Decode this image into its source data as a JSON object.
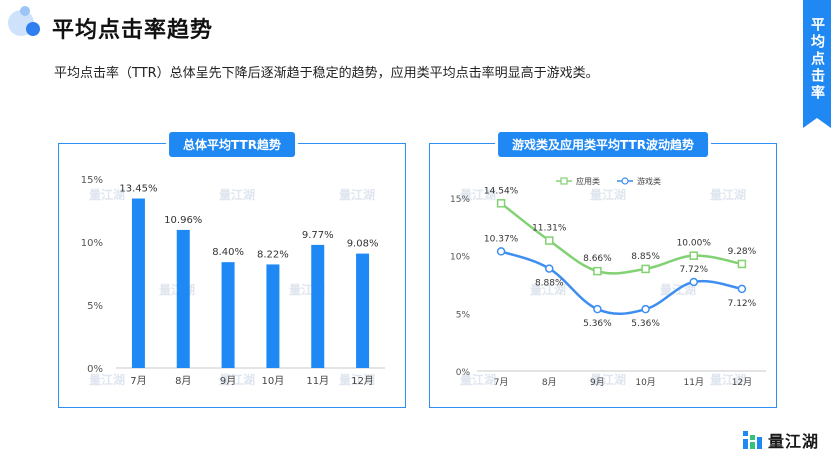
{
  "header": {
    "title": "平均点击率趋势",
    "side_tab": "平均点击率"
  },
  "summary": "平均点击率（TTR）总体呈先下降后逐渐趋于稳定的趋势，应用类平均点击率明显高于游戏类。",
  "brand": {
    "name": "量江湖",
    "watermark": "量江湖"
  },
  "colors": {
    "accent": "#1f88f2",
    "bar": "#1e88f5",
    "app_line": "#82d173",
    "game_line": "#3d8ef0"
  },
  "chart_data": [
    {
      "type": "bar",
      "title": "总体平均TTR趋势",
      "categories": [
        "7月",
        "8月",
        "9月",
        "10月",
        "11月",
        "12月"
      ],
      "values": [
        13.45,
        10.96,
        8.4,
        8.22,
        9.77,
        9.08
      ],
      "value_labels": [
        "13.45%",
        "10.96%",
        "8.40%",
        "8.22%",
        "9.77%",
        "9.08%"
      ],
      "yticks": [
        "0%",
        "5%",
        "10%",
        "15%"
      ],
      "ylim": [
        0,
        15
      ],
      "grid": false
    },
    {
      "type": "line",
      "title": "游戏类及应用类平均TTR波动趋势",
      "categories": [
        "7月",
        "8月",
        "9月",
        "10月",
        "11月",
        "12月"
      ],
      "yticks": [
        "0%",
        "5%",
        "10%",
        "15%"
      ],
      "ylim": [
        0,
        15
      ],
      "legend_position": "top-center",
      "series": [
        {
          "name": "应用类",
          "values": [
            14.54,
            11.31,
            8.66,
            8.85,
            10.0,
            9.28
          ],
          "labels": [
            "14.54%",
            "11.31%",
            "8.66%",
            "8.85%",
            "10.00%",
            "9.28%"
          ],
          "marker": "square"
        },
        {
          "name": "游戏类",
          "values": [
            10.37,
            8.88,
            5.36,
            5.36,
            7.72,
            7.12
          ],
          "labels": [
            "10.37%",
            "8.88%",
            "5.36%",
            "5.36%",
            "7.72%",
            "7.12%"
          ],
          "marker": "circle"
        }
      ]
    }
  ]
}
